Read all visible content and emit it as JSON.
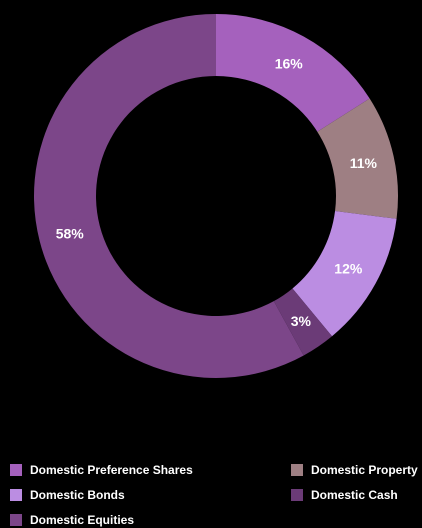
{
  "chart_data": {
    "type": "pie",
    "donut": true,
    "legend_position": "bottom",
    "series": [
      {
        "name": "Domestic Preference Shares",
        "value": 16,
        "label": "16%",
        "color": "#a561bd"
      },
      {
        "name": "Domestic Property",
        "value": 11,
        "label": "11%",
        "color": "#9e7f83"
      },
      {
        "name": "Domestic Bonds",
        "value": 12,
        "label": "12%",
        "color": "#bb8de2"
      },
      {
        "name": "Domestic Cash",
        "value": 3,
        "label": "3%",
        "color": "#6b3b77"
      },
      {
        "name": "Domestic Equities",
        "value": 58,
        "label": "58%",
        "color": "#7c4689"
      }
    ]
  }
}
